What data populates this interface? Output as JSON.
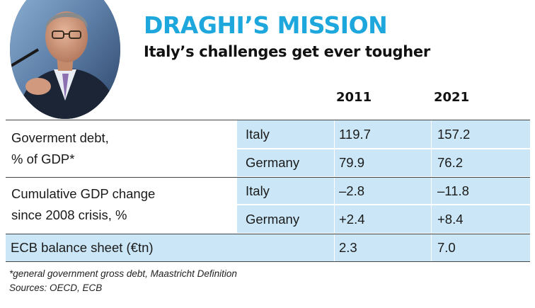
{
  "header": {
    "title": "DRAGHI’S MISSION",
    "subtitle": "Italy’s challenges get ever tougher"
  },
  "columns": [
    "2011",
    "2021"
  ],
  "table": {
    "debt": {
      "label_line1": "Goverment debt,",
      "label_line2": "% of GDP*",
      "rows": [
        {
          "country": "Italy",
          "v2011": "119.7",
          "v2021": "157.2"
        },
        {
          "country": "Germany",
          "v2011": "79.9",
          "v2021": "76.2"
        }
      ]
    },
    "gdp": {
      "label_line1": "Cumulative GDP change",
      "label_line2": "since 2008 crisis, %",
      "rows": [
        {
          "country": "Italy",
          "v2011": "–2.8",
          "v2021": "–11.8"
        },
        {
          "country": "Germany",
          "v2011": "+2.4",
          "v2021": "+8.4"
        }
      ]
    },
    "ecb": {
      "label": "ECB balance sheet (€tn)",
      "v2011": "2.3",
      "v2021": "7.0"
    }
  },
  "footnotes": {
    "note": "*general government gross debt, Maastricht Definition",
    "sources": "Sources: OECD, ECB"
  },
  "colors": {
    "accent": "#1da7dc",
    "cell_fill": "#cbe7f7"
  }
}
